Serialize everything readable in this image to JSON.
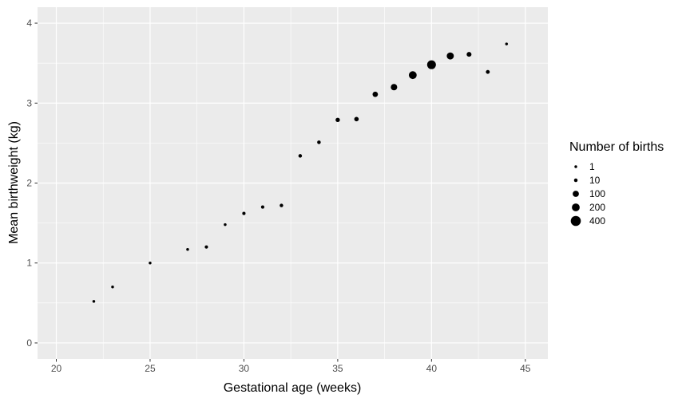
{
  "chart_data": {
    "type": "scatter",
    "xlabel": "Gestational age (weeks)",
    "ylabel": "Mean birthweight (kg)",
    "xlim": [
      19,
      46.2
    ],
    "ylim": [
      -0.2,
      4.2
    ],
    "x_ticks": [
      20,
      25,
      30,
      35,
      40,
      45
    ],
    "y_ticks": [
      0,
      1,
      2,
      3,
      4
    ],
    "grid": true,
    "legend": {
      "title": "Number of births",
      "position": "right",
      "entries": [
        {
          "label": "1",
          "value": 1
        },
        {
          "label": "10",
          "value": 10
        },
        {
          "label": "100",
          "value": 100
        },
        {
          "label": "200",
          "value": 200
        },
        {
          "label": "400",
          "value": 400
        }
      ]
    },
    "points": [
      {
        "x": 22,
        "y": 0.52,
        "n": 1
      },
      {
        "x": 23,
        "y": 0.7,
        "n": 1
      },
      {
        "x": 25,
        "y": 1.0,
        "n": 1
      },
      {
        "x": 27,
        "y": 1.17,
        "n": 1
      },
      {
        "x": 28,
        "y": 1.2,
        "n": 5
      },
      {
        "x": 29,
        "y": 1.48,
        "n": 1
      },
      {
        "x": 30,
        "y": 1.62,
        "n": 5
      },
      {
        "x": 31,
        "y": 1.7,
        "n": 5
      },
      {
        "x": 32,
        "y": 1.72,
        "n": 8
      },
      {
        "x": 33,
        "y": 2.34,
        "n": 10
      },
      {
        "x": 34,
        "y": 2.51,
        "n": 10
      },
      {
        "x": 35,
        "y": 2.79,
        "n": 25
      },
      {
        "x": 36,
        "y": 2.8,
        "n": 30
      },
      {
        "x": 37,
        "y": 3.11,
        "n": 60
      },
      {
        "x": 38,
        "y": 3.2,
        "n": 110
      },
      {
        "x": 39,
        "y": 3.35,
        "n": 200
      },
      {
        "x": 40,
        "y": 3.48,
        "n": 280
      },
      {
        "x": 41,
        "y": 3.59,
        "n": 150
      },
      {
        "x": 42,
        "y": 3.61,
        "n": 40
      },
      {
        "x": 43,
        "y": 3.39,
        "n": 15
      },
      {
        "x": 44,
        "y": 3.74,
        "n": 1
      }
    ]
  }
}
